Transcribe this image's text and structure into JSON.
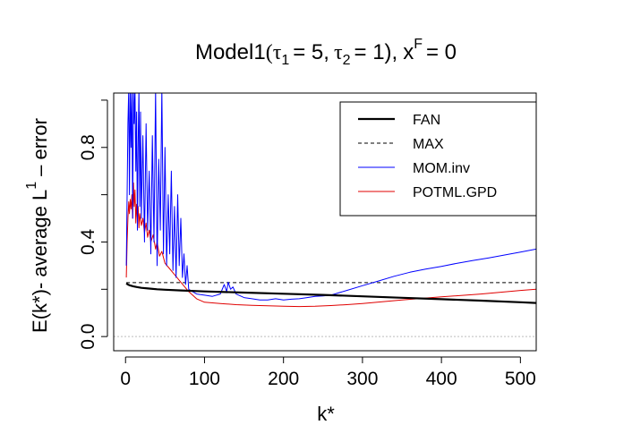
{
  "chart_data": {
    "type": "line",
    "title": {
      "model": "Model1",
      "tau1_sym": "τ",
      "tau1_sub": "1",
      "tau1_val": "= 5,",
      "tau2_sym": "τ",
      "tau2_sub": "2",
      "tau2_val": "= 1),",
      "xf_base": "x",
      "xf_sup": "F",
      "xf_val": "= 0"
    },
    "xlabel": "k*",
    "ylabel": {
      "main": "E(k*)- average L",
      "sup": "1",
      "tail": "– error"
    },
    "xlim": [
      -15,
      520
    ],
    "ylim": [
      -0.06,
      1.03
    ],
    "x_ticks": [
      "0",
      "100",
      "200",
      "300",
      "400",
      "500"
    ],
    "y_ticks": [
      "0.0",
      "0.4",
      "0.8"
    ],
    "reference_line": {
      "y": 0.0,
      "style": "dotted",
      "color": "#bdbdbd"
    },
    "legend": {
      "position": "top-right",
      "entries": [
        {
          "label": "FAN",
          "color": "#000000",
          "style": "solid-thick"
        },
        {
          "label": "MAX",
          "color": "#000000",
          "style": "dashed"
        },
        {
          "label": "MOM.inv",
          "color": "#0000ff",
          "style": "solid"
        },
        {
          "label": "POTML.GPD",
          "color": "#e00000",
          "style": "solid"
        }
      ]
    },
    "series": [
      {
        "name": "FAN",
        "color": "#000000",
        "x": [
          1,
          3,
          5,
          10,
          15,
          20,
          30,
          40,
          50,
          70,
          100,
          150,
          200,
          250,
          300,
          350,
          400,
          450,
          500,
          520
        ],
        "values": [
          0.225,
          0.22,
          0.217,
          0.212,
          0.209,
          0.206,
          0.203,
          0.2,
          0.198,
          0.195,
          0.191,
          0.186,
          0.181,
          0.176,
          0.17,
          0.164,
          0.158,
          0.152,
          0.145,
          0.142
        ]
      },
      {
        "name": "MAX",
        "color": "#000000",
        "x": [
          1,
          520
        ],
        "values": [
          0.228,
          0.228
        ]
      },
      {
        "name": "MOM.inv",
        "color": "#0000ff",
        "x": [
          1,
          2,
          3,
          4,
          5,
          6,
          7,
          8,
          9,
          10,
          11,
          12,
          13,
          14,
          15,
          16,
          17,
          18,
          19,
          20,
          22,
          24,
          26,
          28,
          30,
          32,
          34,
          36,
          38,
          40,
          42,
          44,
          46,
          48,
          50,
          52,
          54,
          56,
          58,
          60,
          62,
          64,
          66,
          68,
          70,
          72,
          74,
          76,
          78,
          80,
          85,
          90,
          100,
          110,
          120,
          125,
          128,
          130,
          133,
          136,
          140,
          150,
          160,
          170,
          180,
          190,
          200,
          210,
          220,
          230,
          240,
          250,
          260,
          280,
          300,
          320,
          340,
          360,
          380,
          400,
          420,
          440,
          460,
          480,
          500,
          520
        ],
        "values": [
          0.3,
          0.6,
          0.9,
          1.05,
          0.6,
          1.05,
          0.8,
          1.05,
          0.5,
          1.05,
          0.9,
          1.05,
          0.7,
          0.95,
          0.45,
          0.8,
          1.05,
          0.55,
          0.95,
          0.5,
          0.85,
          0.4,
          0.9,
          0.45,
          0.7,
          0.35,
          0.85,
          0.4,
          1.05,
          0.3,
          0.75,
          0.45,
          1.05,
          0.35,
          0.8,
          0.3,
          0.6,
          0.35,
          0.7,
          0.28,
          0.55,
          0.25,
          0.6,
          0.3,
          0.5,
          0.25,
          0.35,
          0.22,
          0.3,
          0.2,
          0.19,
          0.18,
          0.175,
          0.17,
          0.18,
          0.22,
          0.19,
          0.23,
          0.2,
          0.21,
          0.18,
          0.165,
          0.16,
          0.155,
          0.155,
          0.16,
          0.155,
          0.158,
          0.16,
          0.165,
          0.17,
          0.172,
          0.175,
          0.195,
          0.215,
          0.235,
          0.255,
          0.272,
          0.285,
          0.297,
          0.31,
          0.322,
          0.333,
          0.345,
          0.357,
          0.37
        ]
      },
      {
        "name": "POTML.GPD",
        "color": "#e00000",
        "x": [
          1,
          2,
          3,
          4,
          5,
          6,
          7,
          8,
          9,
          10,
          11,
          12,
          13,
          14,
          15,
          16,
          17,
          18,
          20,
          22,
          24,
          26,
          28,
          30,
          32,
          35,
          38,
          40,
          43,
          46,
          50,
          55,
          60,
          65,
          70,
          75,
          80,
          90,
          100,
          120,
          140,
          160,
          180,
          200,
          220,
          240,
          260,
          280,
          300,
          350,
          400,
          450,
          500,
          520
        ],
        "values": [
          0.25,
          0.4,
          0.5,
          0.57,
          0.52,
          0.58,
          0.54,
          0.6,
          0.5,
          0.65,
          0.55,
          0.62,
          0.48,
          0.56,
          0.5,
          0.55,
          0.46,
          0.52,
          0.47,
          0.5,
          0.44,
          0.48,
          0.42,
          0.45,
          0.4,
          0.43,
          0.37,
          0.4,
          0.34,
          0.36,
          0.31,
          0.29,
          0.27,
          0.25,
          0.23,
          0.21,
          0.19,
          0.16,
          0.145,
          0.14,
          0.135,
          0.132,
          0.13,
          0.128,
          0.127,
          0.128,
          0.131,
          0.135,
          0.14,
          0.155,
          0.168,
          0.18,
          0.195,
          0.2
        ]
      }
    ]
  }
}
